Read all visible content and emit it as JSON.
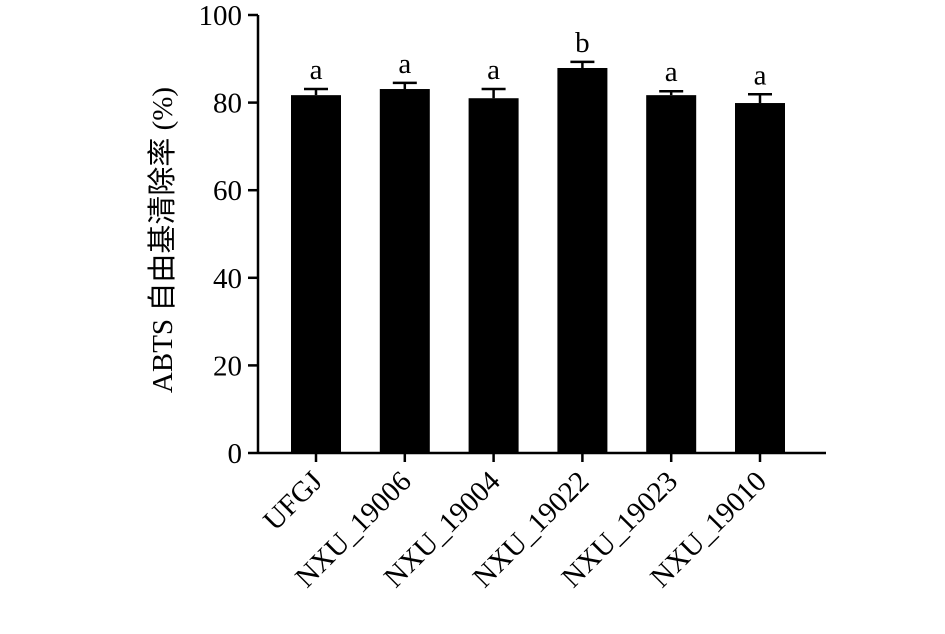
{
  "chart_data": {
    "type": "bar",
    "y_label": "ABTS 自由基清除率 (%)",
    "categories": [
      "UFGJ",
      "NXU_19006",
      "NXU_19004",
      "NXU_19022",
      "NXU_19023",
      "NXU_19010"
    ],
    "values": [
      81.7,
      83.1,
      81.0,
      87.9,
      81.7,
      79.9
    ],
    "errors": [
      1.4,
      1.4,
      2.1,
      1.4,
      0.9,
      2.0
    ],
    "significance": [
      "a",
      "a",
      "a",
      "b",
      "a",
      "a"
    ],
    "color": "#000000",
    "ylim": [
      0,
      100
    ],
    "yticks": [
      0,
      20,
      40,
      60,
      80,
      100
    ],
    "grid": false
  }
}
